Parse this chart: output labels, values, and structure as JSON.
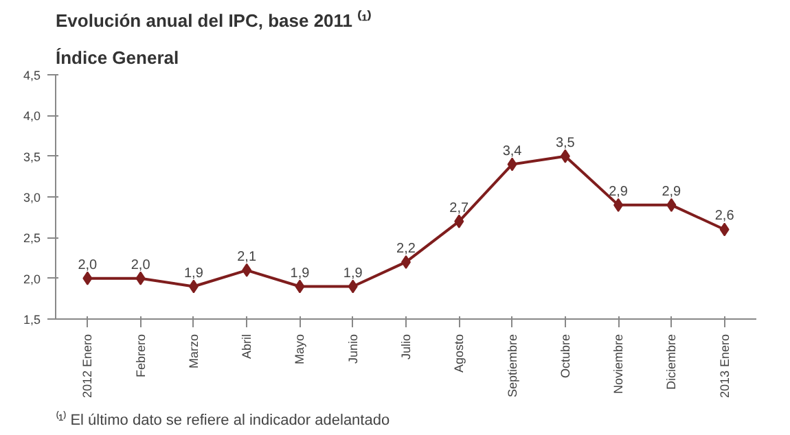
{
  "chart_data": {
    "type": "line",
    "title": "Evolución anual del IPC, base 2011 ⁽¹⁾",
    "subtitle": "Índice General",
    "categories": [
      "2012 Enero",
      "Febrero",
      "Marzo",
      "Abril",
      "Mayo",
      "Junio",
      "Julio",
      "Agosto",
      "Septiembre",
      "Octubre",
      "Noviembre",
      "Diciembre",
      "2013 Enero"
    ],
    "series": [
      {
        "color": "#7f1d1d",
        "values": [
          2.0,
          2.0,
          1.9,
          2.1,
          1.9,
          1.9,
          2.2,
          2.7,
          3.4,
          3.5,
          2.9,
          2.9,
          2.6
        ],
        "value_labels": [
          "2,0",
          "2,0",
          "1,9",
          "2,1",
          "1,9",
          "1,9",
          "2,2",
          "2,7",
          "3,4",
          "3,5",
          "2,9",
          "2,9",
          "2,6"
        ]
      }
    ],
    "ylim": [
      1.5,
      4.5
    ],
    "yticks": [
      {
        "value": 1.5,
        "label": "1,5"
      },
      {
        "value": 2.0,
        "label": "2,0"
      },
      {
        "value": 2.5,
        "label": "2,5"
      },
      {
        "value": 3.0,
        "label": "3,0"
      },
      {
        "value": 3.5,
        "label": "3,5"
      },
      {
        "value": 4.0,
        "label": "4,0"
      },
      {
        "value": 4.5,
        "label": "4,5"
      }
    ],
    "marker": "diamond",
    "line_style": "solid",
    "grid": false,
    "annotations": [
      "⁽¹⁾ El último dato se refiere al indicador adelantado"
    ]
  }
}
